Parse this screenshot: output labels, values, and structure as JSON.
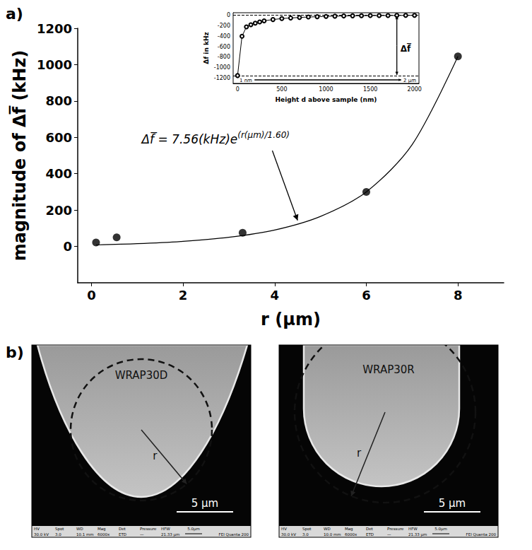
{
  "chart_data": [
    {
      "type": "scatter",
      "panel_label": "a)",
      "x_label": "r (μm)",
      "y_label": "magnitude of Δf̅ (kHz)",
      "xlim": [
        -0.3,
        9
      ],
      "xticks": [
        0,
        2,
        4,
        6,
        8
      ],
      "ylim": [
        -200,
        1200
      ],
      "yticks": [
        0,
        200,
        400,
        600,
        800,
        1000,
        1200
      ],
      "grid": false,
      "series": [
        {
          "type": "scatter",
          "color": "#000000",
          "marker": "circle",
          "x": [
            0.1,
            0.55,
            3.3,
            6,
            8
          ],
          "values": [
            22,
            50,
            75,
            300,
            1045
          ]
        },
        {
          "type": "line",
          "color": "#000000",
          "line_style": "solid",
          "x": [
            0.1,
            1,
            2,
            3,
            4,
            5,
            6,
            7,
            8
          ],
          "values": [
            8,
            15,
            28,
            50,
            90,
            165,
            300,
            560,
            1045
          ]
        }
      ],
      "annotations": [
        {
          "text": "Δf̅ = 7.56(kHz)e",
          "superscript": "(r(μm)/1.60)"
        }
      ]
    },
    {
      "type": "line",
      "x_label": "Height d above sample (nm)",
      "y_label": "Δf in kHz",
      "xlim": [
        -50,
        2050
      ],
      "xticks": [
        0,
        500,
        1000,
        1500,
        2000
      ],
      "ylim": [
        -1300,
        50
      ],
      "yticks": [
        -1200,
        -1000,
        -800,
        -600,
        -400,
        -200,
        0
      ],
      "grid": false,
      "color": "#000000",
      "marker": "open_circle",
      "x": [
        0,
        50,
        100,
        150,
        200,
        250,
        300,
        400,
        500,
        600,
        700,
        800,
        900,
        1000,
        1100,
        1200,
        1300,
        1400,
        1500,
        1600,
        1700,
        1800,
        1900,
        2000
      ],
      "values": [
        -1150,
        -400,
        -220,
        -180,
        -150,
        -125,
        -105,
        -80,
        -62,
        -50,
        -40,
        -32,
        -26,
        -20,
        -16,
        -12,
        -9,
        -7,
        -5,
        -4,
        -3,
        -2,
        -1,
        0
      ],
      "reference_lines": [
        0,
        -1150
      ],
      "marker_line": {
        "label": "Δf̅",
        "x": 1800,
        "from": 0,
        "to": -1150
      },
      "range_labels": [
        "1 nm",
        "2 μm"
      ]
    }
  ],
  "panel_b": {
    "panel_label": "b)",
    "images": [
      {
        "label": "WRAP30D",
        "radius_label": "r",
        "scale_bar": "5 μm",
        "info": {
          "headers": [
            "HV",
            "Spot",
            "WD",
            "Mag",
            "Det",
            "Pressure",
            "HFW"
          ],
          "values": [
            "30.0 kV",
            "3.0",
            "10.1 mm",
            "6000x",
            "ETD",
            "—",
            "21.33 μm"
          ],
          "scale": "5.0μm",
          "instrument": "FEI Quanta 200"
        }
      },
      {
        "label": "WRAP30R",
        "radius_label": "r",
        "scale_bar": "5 μm",
        "info": {
          "headers": [
            "HV",
            "Spot",
            "WD",
            "Mag",
            "Det",
            "Pressure",
            "HFW"
          ],
          "values": [
            "30.0 kV",
            "3.0",
            "10.0 mm",
            "6000x",
            "ETD",
            "—",
            "21.33 μm"
          ],
          "scale": "5.0μm",
          "instrument": "FEI Quanta 200"
        }
      }
    ]
  }
}
